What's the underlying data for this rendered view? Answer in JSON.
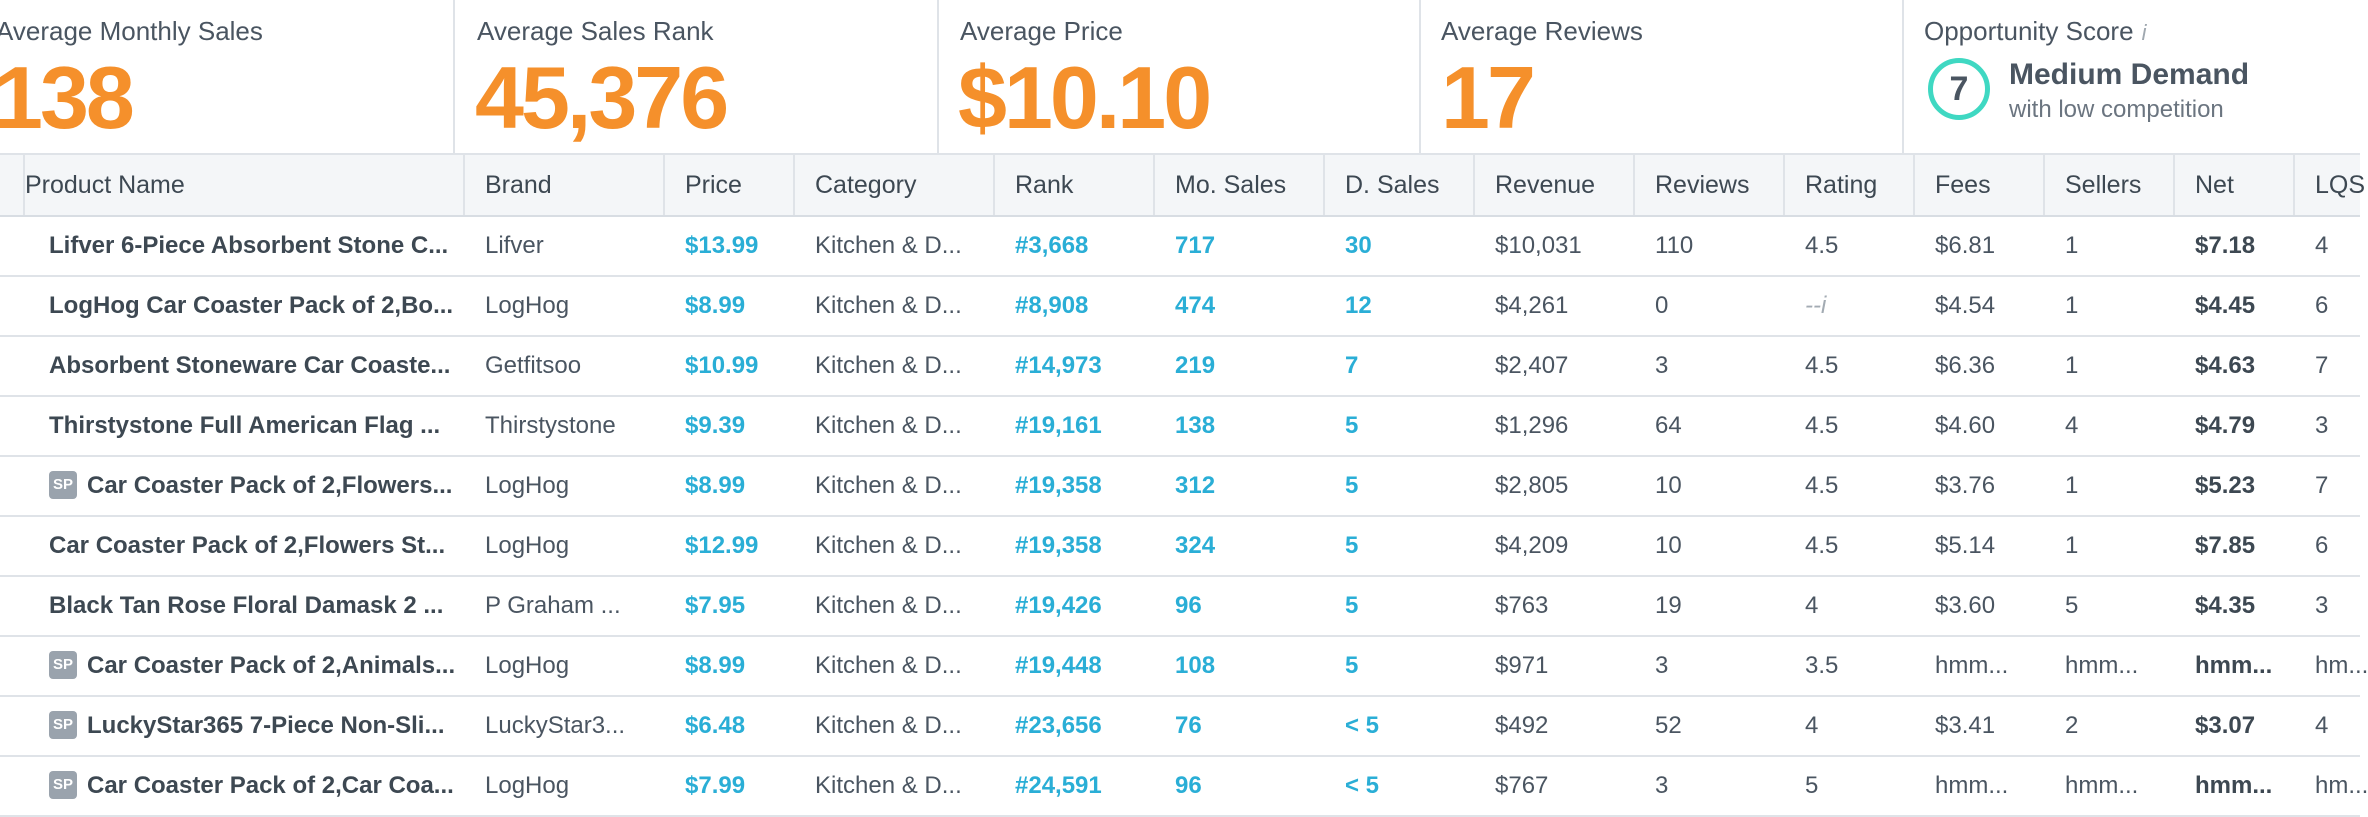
{
  "summary": {
    "avg_monthly_sales": {
      "label": "Average Monthly Sales",
      "value": "138"
    },
    "avg_sales_rank": {
      "label": "Average Sales Rank",
      "value": "45,376"
    },
    "avg_price": {
      "label": "Average Price",
      "value": "$10.10"
    },
    "avg_reviews": {
      "label": "Average Reviews",
      "value": "17"
    },
    "opportunity": {
      "label": "Opportunity Score",
      "info": "i",
      "score": "7",
      "title": "Medium Demand",
      "subtitle": "with low competition"
    }
  },
  "colors": {
    "accent_orange": "#f5902b",
    "link_blue": "#2aaed6",
    "score_ring": "#3fd8c2"
  },
  "table": {
    "columns": [
      "Product Name",
      "Brand",
      "Price",
      "Category",
      "Rank",
      "Mo. Sales",
      "D. Sales",
      "Revenue",
      "Reviews",
      "Rating",
      "Fees",
      "Sellers",
      "Net",
      "LQS"
    ],
    "rows": [
      {
        "sp": false,
        "name": "Lifver 6-Piece Absorbent Stone C...",
        "brand": "Lifver",
        "price": "$13.99",
        "category": "Kitchen & D...",
        "rank": "#3,668",
        "mo_sales": "717",
        "d_sales": "30",
        "revenue": "$10,031",
        "reviews": "110",
        "rating": "4.5",
        "fees": "$6.81",
        "sellers": "1",
        "net": "$7.18",
        "lqs": "4"
      },
      {
        "sp": false,
        "name": "LogHog Car Coaster Pack of 2,Bo...",
        "brand": "LogHog",
        "price": "$8.99",
        "category": "Kitchen & D...",
        "rank": "#8,908",
        "mo_sales": "474",
        "d_sales": "12",
        "revenue": "$4,261",
        "reviews": "0",
        "rating": "--i",
        "fees": "$4.54",
        "sellers": "1",
        "net": "$4.45",
        "lqs": "6"
      },
      {
        "sp": false,
        "name": "Absorbent Stoneware Car Coaste...",
        "brand": "Getfitsoo",
        "price": "$10.99",
        "category": "Kitchen & D...",
        "rank": "#14,973",
        "mo_sales": "219",
        "d_sales": "7",
        "revenue": "$2,407",
        "reviews": "3",
        "rating": "4.5",
        "fees": "$6.36",
        "sellers": "1",
        "net": "$4.63",
        "lqs": "7"
      },
      {
        "sp": false,
        "name": "Thirstystone Full American Flag ...",
        "brand": "Thirstystone",
        "price": "$9.39",
        "category": "Kitchen & D...",
        "rank": "#19,161",
        "mo_sales": "138",
        "d_sales": "5",
        "revenue": "$1,296",
        "reviews": "64",
        "rating": "4.5",
        "fees": "$4.60",
        "sellers": "4",
        "net": "$4.79",
        "lqs": "3"
      },
      {
        "sp": true,
        "name": "Car Coaster Pack of 2,Flowers...",
        "brand": "LogHog",
        "price": "$8.99",
        "category": "Kitchen & D...",
        "rank": "#19,358",
        "mo_sales": "312",
        "d_sales": "5",
        "revenue": "$2,805",
        "reviews": "10",
        "rating": "4.5",
        "fees": "$3.76",
        "sellers": "1",
        "net": "$5.23",
        "lqs": "7"
      },
      {
        "sp": false,
        "name": "Car Coaster Pack of 2,Flowers St...",
        "brand": "LogHog",
        "price": "$12.99",
        "category": "Kitchen & D...",
        "rank": "#19,358",
        "mo_sales": "324",
        "d_sales": "5",
        "revenue": "$4,209",
        "reviews": "10",
        "rating": "4.5",
        "fees": "$5.14",
        "sellers": "1",
        "net": "$7.85",
        "lqs": "6"
      },
      {
        "sp": false,
        "name": "Black Tan Rose Floral Damask 2 ...",
        "brand": "P Graham ...",
        "price": "$7.95",
        "category": "Kitchen & D...",
        "rank": "#19,426",
        "mo_sales": "96",
        "d_sales": "5",
        "revenue": "$763",
        "reviews": "19",
        "rating": "4",
        "fees": "$3.60",
        "sellers": "5",
        "net": "$4.35",
        "lqs": "3"
      },
      {
        "sp": true,
        "name": "Car Coaster Pack of 2,Animals...",
        "brand": "LogHog",
        "price": "$8.99",
        "category": "Kitchen & D...",
        "rank": "#19,448",
        "mo_sales": "108",
        "d_sales": "5",
        "revenue": "$971",
        "reviews": "3",
        "rating": "3.5",
        "fees": "hmm...",
        "sellers": "hmm...",
        "net": "hmm...",
        "lqs": "hm..."
      },
      {
        "sp": true,
        "name": "LuckyStar365 7-Piece Non-Sli...",
        "brand": "LuckyStar3...",
        "price": "$6.48",
        "category": "Kitchen & D...",
        "rank": "#23,656",
        "mo_sales": "76",
        "d_sales": "< 5",
        "revenue": "$492",
        "reviews": "52",
        "rating": "4",
        "fees": "$3.41",
        "sellers": "2",
        "net": "$3.07",
        "lqs": "4"
      },
      {
        "sp": true,
        "name": "Car Coaster Pack of 2,Car Coa...",
        "brand": "LogHog",
        "price": "$7.99",
        "category": "Kitchen & D...",
        "rank": "#24,591",
        "mo_sales": "96",
        "d_sales": "< 5",
        "revenue": "$767",
        "reviews": "3",
        "rating": "5",
        "fees": "hmm...",
        "sellers": "hmm...",
        "net": "hmm...",
        "lqs": "hm..."
      }
    ],
    "sp_badge": "SP"
  }
}
